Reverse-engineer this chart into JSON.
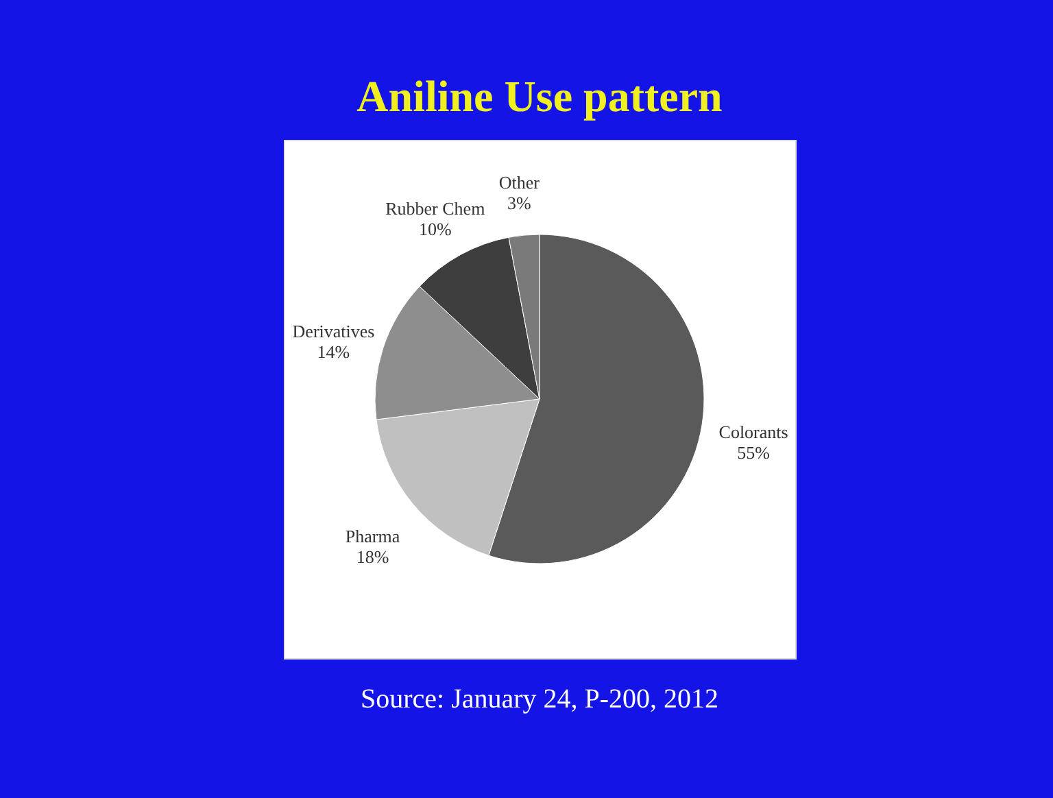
{
  "chart_data": {
    "type": "pie",
    "title": "Aniline Use pattern",
    "categories": [
      "Colorants",
      "Pharma",
      "Derivatives",
      "Rubber Chem",
      "Other"
    ],
    "values": [
      55,
      18,
      14,
      10,
      3
    ],
    "value_labels": [
      "55%",
      "18%",
      "14%",
      "10%",
      "3%"
    ],
    "colors": [
      "#5a5a5a",
      "#c0c0c0",
      "#8e8e8e",
      "#3e3e3e",
      "#7a7a7a"
    ],
    "legend": false,
    "annotations": [
      "Source: January 24, P-200, 2012"
    ]
  }
}
